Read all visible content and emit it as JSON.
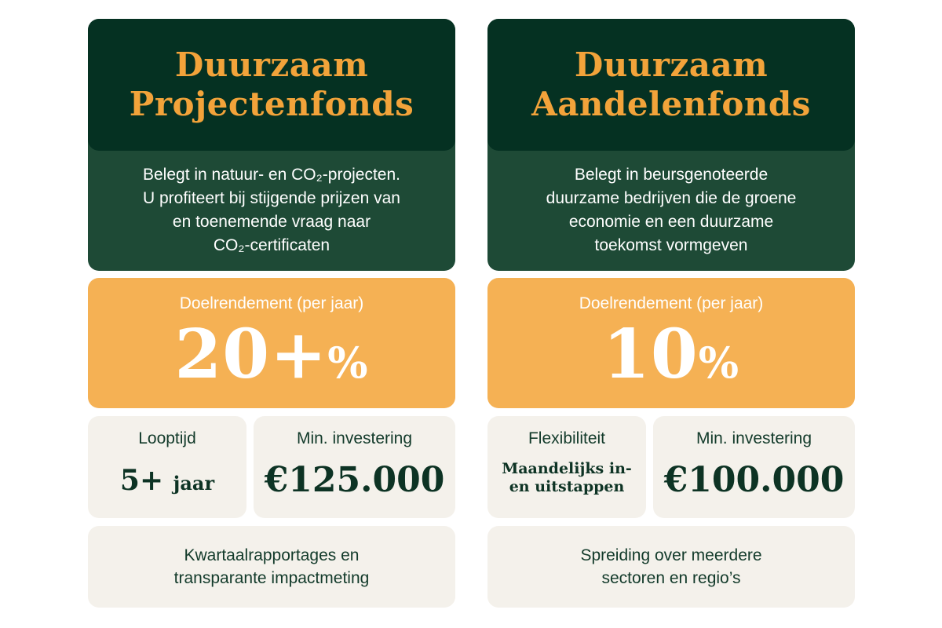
{
  "colors": {
    "title_bg": "#053122",
    "card_bg": "#1e4a36",
    "accent": "#f2a33a",
    "rate_bg": "#f5b154",
    "stat_bg": "#f4f1eb",
    "text_dark": "#123a2a"
  },
  "funds": [
    {
      "title": "Duurzaam\nProjectenfonds",
      "description": "Belegt in natuur- en CO₂-projecten.\nU profiteert bij stijgende prijzen van\nen toenemende vraag naar\nCO₂-certificaten",
      "return_label": "Doelrendement (per jaar)",
      "return_value": "20+",
      "return_unit": "%",
      "stat1_label": "Looptijd",
      "stat1_value": "5+",
      "stat1_unit": "jaar",
      "stat2_label": "Min. investering",
      "stat2_value": "€125.000",
      "note": "Kwartaalrapportages en\ntransparante impactmeting"
    },
    {
      "title": "Duurzaam\nAandelenfonds",
      "description": "Belegt in beursgenoteerde\nduurzame bedrijven die de groene\neconomie en een duurzame\ntoekomst vormgeven",
      "return_label": "Doelrendement (per jaar)",
      "return_value": "10",
      "return_unit": "%",
      "stat1_label": "Flexibiliteit",
      "stat1_value": "Maandelijks in-\nen uitstappen",
      "stat2_label": "Min. investering",
      "stat2_value": "€100.000",
      "note": "Spreiding over meerdere\nsectoren en regio’s"
    }
  ]
}
